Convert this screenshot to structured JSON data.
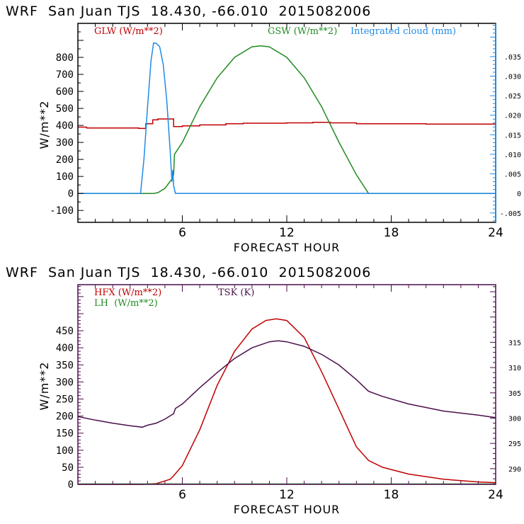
{
  "chart_data": [
    {
      "type": "line",
      "title": "WRF  San Juan TJS  18.430, -66.010  2015082006",
      "xlabel": "FORECAST HOUR",
      "ylabel": "W/m**2",
      "xlim": [
        0,
        24
      ],
      "ylim": [
        -170,
        1000
      ],
      "y2lim": [
        -0.0074,
        0.0435
      ],
      "x_ticks": [
        "6",
        "12",
        "18",
        "24"
      ],
      "x_tick_values": [
        6,
        12,
        18,
        24
      ],
      "y_ticks": [
        "-100",
        "0",
        "100",
        "200",
        "300",
        "400",
        "500",
        "600",
        "700",
        "800"
      ],
      "y_tick_values": [
        -100,
        0,
        100,
        200,
        300,
        400,
        500,
        600,
        700,
        800
      ],
      "y2_ticks": [
        "-.005",
        "0",
        ".005",
        ".010",
        ".015",
        ".020",
        ".025",
        ".030",
        ".035"
      ],
      "y2_tick_values": [
        -0.005,
        0,
        0.005,
        0.01,
        0.015,
        0.02,
        0.025,
        0.03,
        0.035
      ],
      "frame_color": "#000000",
      "right_axis_color": "#1f8ae6",
      "series": [
        {
          "name": "GLW (W/m**2)",
          "axis": "left",
          "color": "#c00000",
          "step": true,
          "x": [
            0,
            0.5,
            1.5,
            3.5,
            3.9,
            4.3,
            4.6,
            5.5,
            5.5,
            6.0,
            7.0,
            8.5,
            9.5,
            12.0,
            13.5,
            14.5,
            16.0,
            20.0,
            24.0
          ],
          "y": [
            390,
            385,
            385,
            382,
            410,
            433,
            438,
            438,
            393,
            397,
            403,
            410,
            413,
            415,
            418,
            415,
            410,
            408,
            408
          ]
        },
        {
          "name": "GSW (W/m**2)",
          "axis": "left",
          "color": "#218b21",
          "x": [
            0,
            4.35,
            4.6,
            5.0,
            5.4,
            5.5,
            5.55,
            6.0,
            7.0,
            8.0,
            9.0,
            10.0,
            10.5,
            11.0,
            12.0,
            13.0,
            14.0,
            15.0,
            16.0,
            16.7,
            24.0
          ],
          "y": [
            0,
            0,
            5,
            30,
            85,
            110,
            230,
            300,
            510,
            680,
            800,
            862,
            868,
            862,
            800,
            680,
            510,
            300,
            110,
            0,
            0
          ]
        },
        {
          "name": "Integrated cloud (mm)",
          "axis": "right",
          "color": "#1f8ae6",
          "x": [
            0,
            3.6,
            3.8,
            4.0,
            4.2,
            4.35,
            4.5,
            4.7,
            4.9,
            5.1,
            5.3,
            5.4,
            5.45,
            5.5,
            5.6,
            24.0
          ],
          "y": [
            0,
            0,
            0.009,
            0.022,
            0.034,
            0.0385,
            0.0384,
            0.0375,
            0.033,
            0.024,
            0.011,
            0.003,
            0.006,
            0.002,
            0,
            0
          ]
        }
      ],
      "legend": [
        {
          "label": "GLW (W/m**2)",
          "color": "#c00000"
        },
        {
          "label": "GSW (W/m**2)",
          "color": "#218b21"
        },
        {
          "label": "Integrated cloud (mm)",
          "color": "#1f8ae6"
        }
      ],
      "legend_position": "top"
    },
    {
      "type": "line",
      "title": "WRF  San Juan TJS  18.430, -66.010  2015082006",
      "xlabel": "FORECAST HOUR",
      "ylabel": "W/m**2",
      "xlim": [
        0,
        24
      ],
      "ylim": [
        0,
        585
      ],
      "y2lim": [
        286.9,
        326.4
      ],
      "x_ticks": [
        "6",
        "12",
        "18",
        "24"
      ],
      "x_tick_values": [
        6,
        12,
        18,
        24
      ],
      "y_ticks": [
        "0",
        "50",
        "100",
        "150",
        "200",
        "250",
        "300",
        "350",
        "400",
        "450"
      ],
      "y_tick_values": [
        0,
        50,
        100,
        150,
        200,
        250,
        300,
        350,
        400,
        450
      ],
      "y2_ticks": [
        "290",
        "295",
        "300",
        "305",
        "310",
        "315"
      ],
      "y2_tick_values": [
        290,
        295,
        300,
        305,
        310,
        315
      ],
      "frame_color": "#4b0f4b",
      "series": [
        {
          "name": "HFX (W/m**2)",
          "axis": "left",
          "color": "#c00000",
          "x": [
            0,
            3.7,
            4.5,
            5.0,
            5.3,
            5.5,
            6.0,
            7.0,
            8.0,
            9.0,
            10.0,
            10.8,
            11.4,
            12.0,
            13.0,
            14.0,
            15.0,
            16.0,
            16.7,
            17.5,
            19.0,
            21.0,
            23.0,
            24.0
          ],
          "y": [
            0,
            0,
            2,
            10,
            15,
            25,
            55,
            160,
            290,
            390,
            455,
            480,
            485,
            480,
            430,
            330,
            220,
            110,
            70,
            50,
            30,
            15,
            7,
            5
          ]
        },
        {
          "name": "LH (W/m**2)",
          "axis": "left",
          "color": "#218b21",
          "x": [
            0,
            24
          ],
          "y": [
            1,
            1
          ]
        },
        {
          "name": "TSK (K)",
          "axis": "right",
          "color": "#4b0f4b",
          "x": [
            0,
            1.0,
            2.0,
            3.0,
            3.7,
            4.0,
            4.5,
            5.0,
            5.5,
            5.6,
            6.0,
            7.0,
            8.0,
            9.0,
            10.0,
            11.0,
            11.5,
            12.0,
            13.0,
            14.0,
            15.0,
            16.0,
            16.7,
            17.5,
            19.0,
            21.0,
            23.0,
            24.0
          ],
          "y": [
            300.3,
            299.6,
            299.0,
            298.5,
            298.2,
            298.6,
            299.0,
            299.8,
            300.9,
            301.9,
            302.8,
            306.0,
            309.0,
            311.8,
            313.9,
            315.1,
            315.3,
            315.1,
            314.2,
            312.6,
            310.5,
            307.6,
            305.3,
            304.3,
            302.8,
            301.4,
            300.6,
            300.1
          ]
        }
      ],
      "legend": [
        {
          "label": "HFX (W/m**2)",
          "color": "#c00000"
        },
        {
          "label": "LH  (W/m**2)",
          "color": "#218b21"
        },
        {
          "label": "TSK (K)",
          "color": "#4b0f4b"
        }
      ],
      "legend_position": "top-left"
    }
  ],
  "ylabel_text": "W/m**2"
}
